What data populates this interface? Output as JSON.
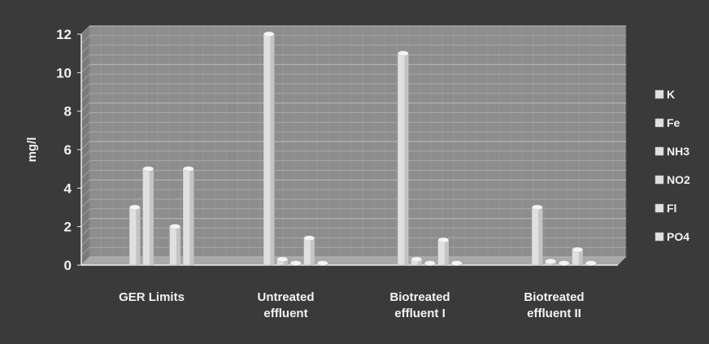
{
  "chart_data": {
    "type": "bar",
    "categories": [
      "GER Limits",
      "Untreated\neffluent",
      "Biotreated\neffluent I",
      "Biotreated\neffluent II"
    ],
    "series": [
      {
        "name": "K",
        "values": [
          0,
          0,
          0,
          0
        ]
      },
      {
        "name": "Fe",
        "values": [
          3,
          12,
          11,
          3
        ]
      },
      {
        "name": "NH3",
        "values": [
          5,
          0.3,
          0.3,
          0.2
        ]
      },
      {
        "name": "NO2",
        "values": [
          0,
          0.1,
          0.1,
          0.1
        ]
      },
      {
        "name": "Fl",
        "values": [
          2,
          1.4,
          1.3,
          0.8
        ]
      },
      {
        "name": "PO4",
        "values": [
          5,
          0.1,
          0.1,
          0.1
        ]
      }
    ],
    "ylabel": "mg/l",
    "xlabel": "",
    "ylim": [
      0,
      12
    ],
    "yticks": [
      "0",
      "2",
      "4",
      "6",
      "8",
      "10",
      "12"
    ],
    "grid": true,
    "legend": "right",
    "colors": {
      "background": "#3a3a3a",
      "plot": "#8d8d8d",
      "grid": "#b5b5b5",
      "bar": "#e0e0e0",
      "text": "#f2f2f2"
    }
  }
}
